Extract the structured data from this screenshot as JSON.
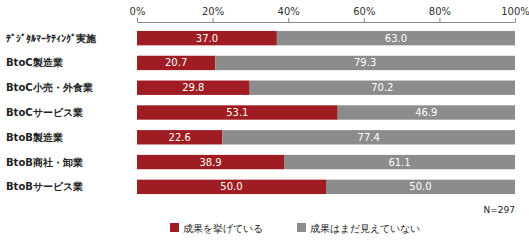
{
  "chart_data": {
    "type": "bar",
    "orientation": "horizontal",
    "stacked": true,
    "data_labels": true,
    "grid": false,
    "legend": "bottom",
    "annotation": "N=297",
    "categories": [
      "ﾃﾞｼﾞﾀﾙﾏｰｹﾃｨﾝｸﾞ実施",
      "BtoC製造業",
      "BtoC小売・外食業",
      "BtoCサービス業",
      "BtoB製造業",
      "BtoB商社・卸業",
      "BtoBサービス業"
    ],
    "series": [
      {
        "name": "成果を挙げている",
        "color": "#9e1c22",
        "values": [
          37.0,
          20.7,
          29.8,
          53.1,
          22.6,
          38.9,
          50.0
        ],
        "value_labels": [
          "37.0",
          "20.7",
          "29.8",
          "53.1",
          "22.6",
          "38.9",
          "50.0"
        ]
      },
      {
        "name": "成果はまだ見えていない",
        "color": "#8c8c8c",
        "values": [
          63.0,
          79.3,
          70.2,
          46.9,
          77.4,
          61.1,
          50.0
        ],
        "value_labels": [
          "63.0",
          "79.3",
          "70.2",
          "46.9",
          "77.4",
          "61.1",
          "50.0"
        ]
      }
    ],
    "xlim": [
      0,
      100
    ],
    "xticks": [
      {
        "value": 0,
        "label": "0%"
      },
      {
        "value": 20,
        "label": "20%"
      },
      {
        "value": 40,
        "label": "40%"
      },
      {
        "value": 60,
        "label": "60%"
      },
      {
        "value": 80,
        "label": "80%"
      },
      {
        "value": 100,
        "label": "100%"
      }
    ]
  }
}
